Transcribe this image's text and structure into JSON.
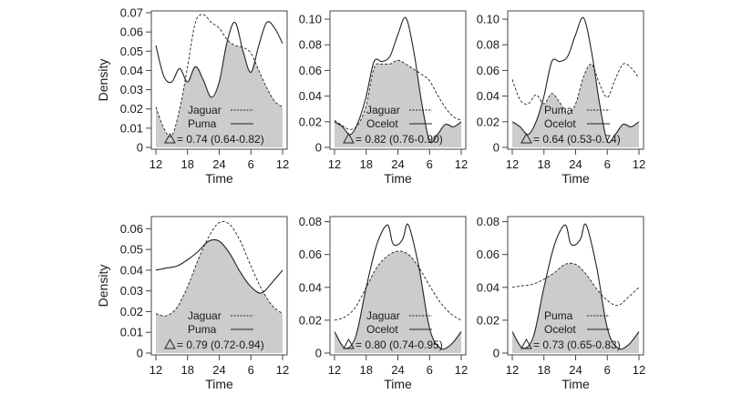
{
  "figure": {
    "y_label": "Density",
    "x_label": "Time",
    "x_ticks": [
      "12",
      "18",
      "24",
      "6",
      "12"
    ]
  },
  "chart_data": [
    {
      "type": "area",
      "row": 0,
      "col": 0,
      "ylim": [
        0,
        0.07
      ],
      "yticks": [
        "0",
        "0.01",
        "0.02",
        "0.03",
        "0.04",
        "0.05",
        "0.06",
        "0.07"
      ],
      "xlabel": "Time",
      "ylabel": "Density",
      "legend": [
        {
          "name": "Jaguar",
          "style": "dashed"
        },
        {
          "name": "Puma",
          "style": "solid"
        }
      ],
      "overlap": {
        "value": "0.74",
        "ci": "(0.64-0.82)"
      },
      "series": [
        {
          "name": "Jaguar",
          "style": "dashed",
          "x": [
            0,
            1.5,
            3,
            4.5,
            6,
            7.5,
            9,
            10.5,
            12,
            13.5,
            15,
            16.5,
            18,
            19.5,
            21,
            22.5,
            24
          ],
          "values": [
            0.021,
            0.01,
            0.006,
            0.02,
            0.042,
            0.065,
            0.069,
            0.065,
            0.062,
            0.056,
            0.053,
            0.052,
            0.049,
            0.04,
            0.031,
            0.024,
            0.021
          ]
        },
        {
          "name": "Puma",
          "style": "solid",
          "x": [
            0,
            1.5,
            3,
            4.5,
            6,
            7.5,
            9,
            10.5,
            12,
            13.5,
            15,
            16.5,
            18,
            19.5,
            21,
            22.5,
            24
          ],
          "values": [
            0.053,
            0.037,
            0.034,
            0.041,
            0.034,
            0.042,
            0.035,
            0.026,
            0.034,
            0.055,
            0.065,
            0.05,
            0.039,
            0.053,
            0.065,
            0.062,
            0.054
          ]
        }
      ]
    },
    {
      "type": "area",
      "row": 0,
      "col": 1,
      "ylim": [
        0,
        0.105
      ],
      "yticks": [
        "0",
        "0.02",
        "0.04",
        "0.06",
        "0.08",
        "0.10"
      ],
      "xlabel": "Time",
      "legend": [
        {
          "name": "Jaguar",
          "style": "dashed"
        },
        {
          "name": "Ocelot",
          "style": "solid"
        }
      ],
      "overlap": {
        "value": "0.82",
        "ci": "(0.76-0.90)"
      },
      "series": [
        {
          "name": "Jaguar",
          "style": "dashed",
          "x": [
            0,
            1.5,
            3,
            4.5,
            6,
            7.5,
            9,
            10.5,
            12,
            13.5,
            15,
            16.5,
            18,
            19.5,
            21,
            22.5,
            24
          ],
          "values": [
            0.021,
            0.017,
            0.014,
            0.018,
            0.033,
            0.062,
            0.065,
            0.065,
            0.068,
            0.065,
            0.061,
            0.057,
            0.052,
            0.041,
            0.031,
            0.024,
            0.021
          ]
        },
        {
          "name": "Ocelot",
          "style": "solid",
          "x": [
            0,
            1.5,
            3,
            4.5,
            6,
            7.5,
            9,
            10.5,
            12,
            13.5,
            15,
            16.5,
            18,
            19.5,
            21,
            22.5,
            24
          ],
          "values": [
            0.02,
            0.016,
            0.01,
            0.02,
            0.04,
            0.067,
            0.067,
            0.071,
            0.088,
            0.101,
            0.075,
            0.035,
            0.005,
            0.01,
            0.018,
            0.016,
            0.02
          ]
        }
      ]
    },
    {
      "type": "area",
      "row": 0,
      "col": 2,
      "ylim": [
        0,
        0.105
      ],
      "yticks": [
        "0",
        "0.02",
        "0.04",
        "0.06",
        "0.08",
        "0.10"
      ],
      "xlabel": "Time",
      "legend": [
        {
          "name": "Puma",
          "style": "dashed"
        },
        {
          "name": "Ocelot",
          "style": "solid"
        }
      ],
      "overlap": {
        "value": "0.64",
        "ci": "(0.53-0.74)"
      },
      "series": [
        {
          "name": "Puma",
          "style": "dashed",
          "x": [
            0,
            1.5,
            3,
            4.5,
            6,
            7.5,
            9,
            10.5,
            12,
            13.5,
            15,
            16.5,
            18,
            19.5,
            21,
            22.5,
            24
          ],
          "values": [
            0.053,
            0.037,
            0.034,
            0.041,
            0.034,
            0.042,
            0.035,
            0.026,
            0.034,
            0.055,
            0.065,
            0.05,
            0.039,
            0.053,
            0.065,
            0.062,
            0.054
          ]
        },
        {
          "name": "Ocelot",
          "style": "solid",
          "x": [
            0,
            1.5,
            3,
            4.5,
            6,
            7.5,
            9,
            10.5,
            12,
            13.5,
            15,
            16.5,
            18,
            19.5,
            21,
            22.5,
            24
          ],
          "values": [
            0.02,
            0.016,
            0.01,
            0.02,
            0.04,
            0.067,
            0.067,
            0.071,
            0.088,
            0.101,
            0.075,
            0.035,
            0.005,
            0.01,
            0.018,
            0.016,
            0.02
          ]
        }
      ]
    },
    {
      "type": "area",
      "row": 1,
      "col": 0,
      "ylim": [
        0,
        0.065
      ],
      "yticks": [
        "0",
        "0.01",
        "0.02",
        "0.03",
        "0.04",
        "0.05",
        "0.06"
      ],
      "xlabel": "Time",
      "ylabel": "Density",
      "legend": [
        {
          "name": "Jaguar",
          "style": "dashed"
        },
        {
          "name": "Puma",
          "style": "solid"
        }
      ],
      "overlap": {
        "value": "0.79",
        "ci": "(0.72-0.94)"
      },
      "series": [
        {
          "name": "Jaguar",
          "style": "dashed",
          "x": [
            0,
            2,
            4,
            6,
            8,
            10,
            12,
            14,
            16,
            18,
            20,
            22,
            24
          ],
          "values": [
            0.019,
            0.018,
            0.022,
            0.032,
            0.045,
            0.056,
            0.063,
            0.062,
            0.054,
            0.042,
            0.031,
            0.023,
            0.019
          ]
        },
        {
          "name": "Puma",
          "style": "solid",
          "x": [
            0,
            2,
            4,
            6,
            8,
            10,
            12,
            14,
            16,
            18,
            20,
            22,
            24
          ],
          "values": [
            0.04,
            0.041,
            0.042,
            0.045,
            0.049,
            0.054,
            0.054,
            0.048,
            0.039,
            0.032,
            0.029,
            0.034,
            0.04
          ]
        }
      ]
    },
    {
      "type": "area",
      "row": 1,
      "col": 1,
      "ylim": [
        0,
        0.082
      ],
      "yticks": [
        "0",
        "0.02",
        "0.04",
        "0.06",
        "0.08"
      ],
      "xlabel": "Time",
      "legend": [
        {
          "name": "Jaguar",
          "style": "dashed"
        },
        {
          "name": "Ocelot",
          "style": "solid"
        }
      ],
      "overlap": {
        "value": "0.80",
        "ci": "(0.74-0.95)"
      },
      "series": [
        {
          "name": "Jaguar",
          "style": "dashed",
          "x": [
            0,
            2,
            4,
            6,
            8,
            10,
            12,
            14,
            16,
            18,
            20,
            22,
            24
          ],
          "values": [
            0.02,
            0.022,
            0.028,
            0.04,
            0.052,
            0.059,
            0.062,
            0.06,
            0.052,
            0.041,
            0.031,
            0.024,
            0.02
          ]
        },
        {
          "name": "Ocelot",
          "style": "solid",
          "x": [
            0,
            2,
            4,
            6,
            8,
            10,
            11,
            12,
            13,
            14,
            16,
            18,
            20,
            22,
            24
          ],
          "values": [
            0.013,
            0.003,
            0.01,
            0.04,
            0.066,
            0.078,
            0.067,
            0.066,
            0.07,
            0.078,
            0.052,
            0.015,
            0.003,
            0.005,
            0.013
          ]
        }
      ]
    },
    {
      "type": "area",
      "row": 1,
      "col": 2,
      "ylim": [
        0,
        0.082
      ],
      "yticks": [
        "0",
        "0.02",
        "0.04",
        "0.06",
        "0.08"
      ],
      "xlabel": "Time",
      "legend": [
        {
          "name": "Puma",
          "style": "dashed"
        },
        {
          "name": "Ocelot",
          "style": "solid"
        }
      ],
      "overlap": {
        "value": "0.73",
        "ci": "(0.65-0.83)"
      },
      "series": [
        {
          "name": "Puma",
          "style": "dashed",
          "x": [
            0,
            2,
            4,
            6,
            8,
            10,
            12,
            14,
            16,
            18,
            20,
            22,
            24
          ],
          "values": [
            0.04,
            0.041,
            0.042,
            0.045,
            0.049,
            0.054,
            0.054,
            0.048,
            0.039,
            0.032,
            0.029,
            0.034,
            0.04
          ]
        },
        {
          "name": "Ocelot",
          "style": "solid",
          "x": [
            0,
            2,
            4,
            6,
            8,
            10,
            11,
            12,
            13,
            14,
            16,
            18,
            20,
            22,
            24
          ],
          "values": [
            0.013,
            0.003,
            0.01,
            0.04,
            0.066,
            0.078,
            0.067,
            0.066,
            0.07,
            0.078,
            0.052,
            0.015,
            0.003,
            0.005,
            0.013
          ]
        }
      ]
    }
  ]
}
